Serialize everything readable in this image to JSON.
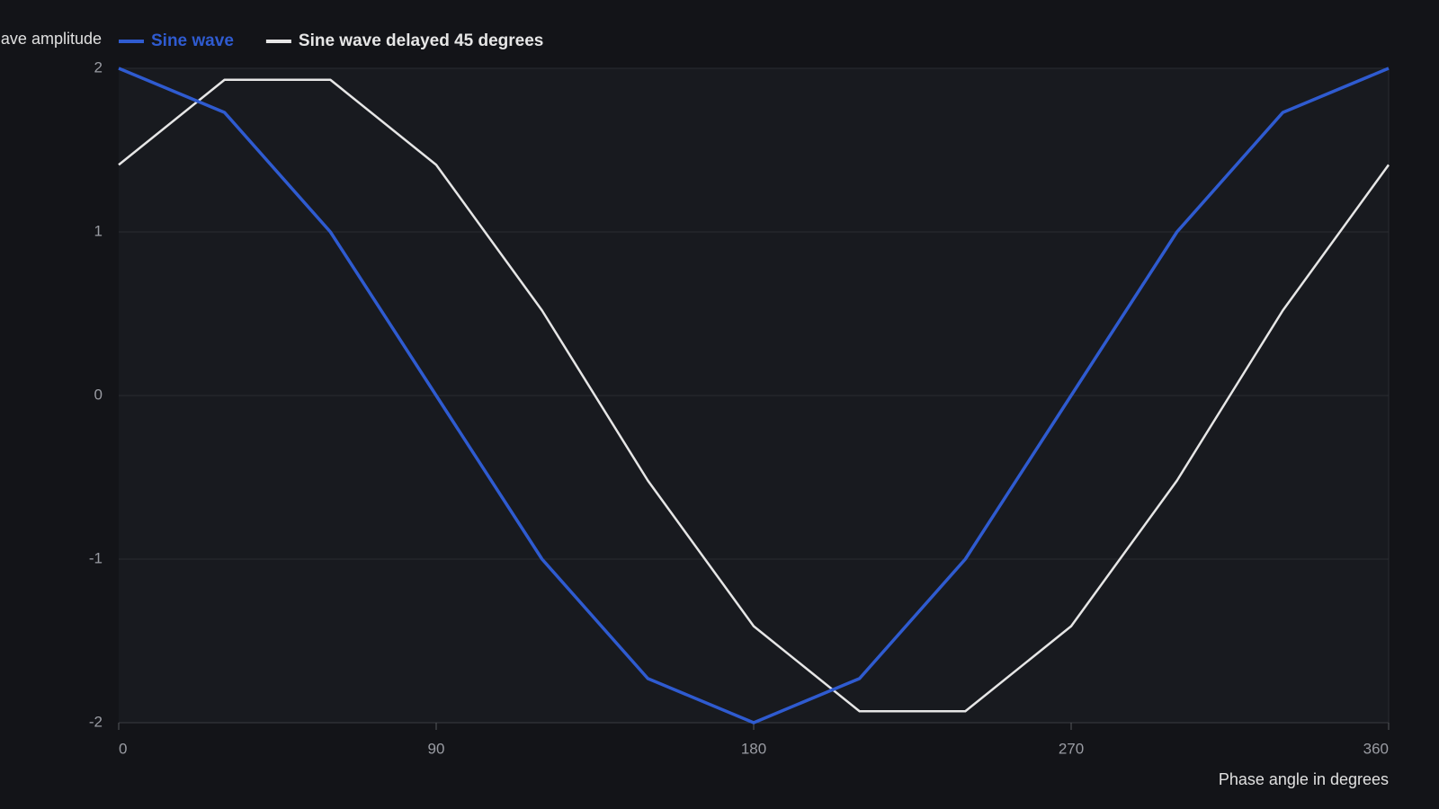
{
  "chart_data": {
    "type": "line",
    "y_axis_label": "ave amplitude",
    "x_axis_label": "Phase angle in degrees",
    "x": [
      0,
      30,
      60,
      90,
      120,
      150,
      180,
      210,
      240,
      270,
      300,
      330,
      360
    ],
    "series": [
      {
        "name": "Sine wave",
        "color": "#2f5bd0",
        "values": [
          2,
          1.73,
          1,
          0,
          -1,
          -1.73,
          -2,
          -1.73,
          -1,
          0,
          1,
          1.73,
          2
        ]
      },
      {
        "name": "Sine wave delayed 45 degrees",
        "color": "#e6e6e6",
        "values": [
          1.41,
          1.93,
          1.93,
          1.41,
          0.52,
          -0.52,
          -1.41,
          -1.93,
          -1.93,
          -1.41,
          -0.52,
          0.52,
          1.41
        ]
      }
    ],
    "xlim": [
      0,
      360
    ],
    "xticks": [
      0,
      90,
      180,
      270,
      360
    ],
    "ylim": [
      -2,
      2
    ],
    "yticks": [
      -2,
      -1,
      0,
      1,
      2
    ],
    "grid": true
  }
}
